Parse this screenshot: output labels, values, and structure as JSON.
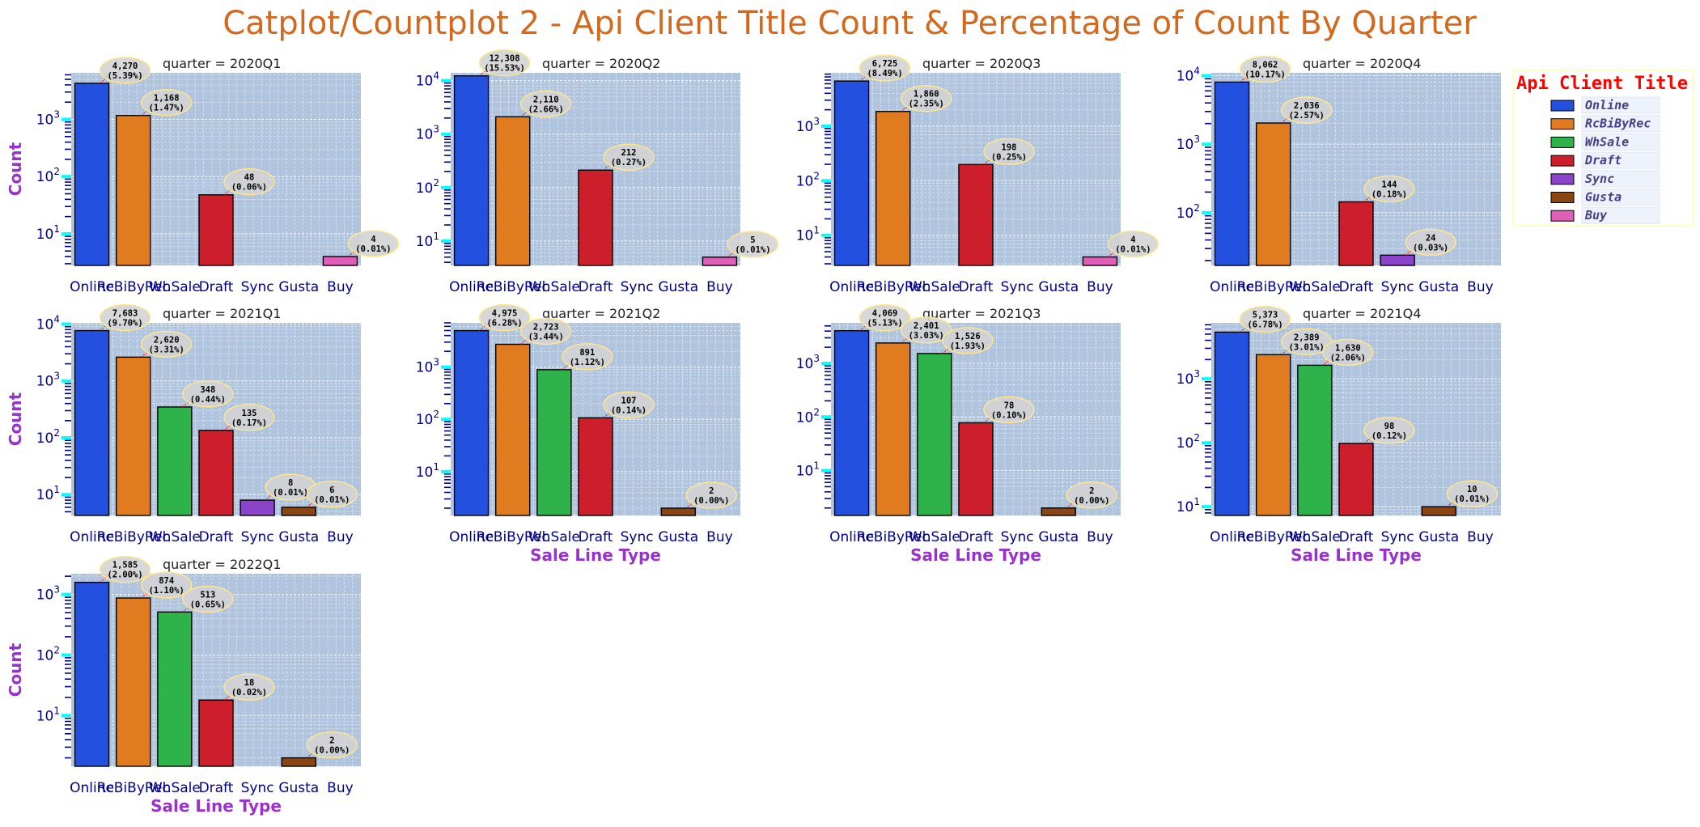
{
  "title": "Catplot/Countplot 2 - Api Client Title Count & Percentage of Count By Quarter",
  "colors": {
    "title": "#d2691e",
    "axis_label": "#9932cc",
    "tick_label": "#00008b",
    "plot_bg": "#b0c4de",
    "grid": "#ffffff",
    "legend_title": "#ff0000",
    "legend_text": "#483d8b",
    "legend_border": "#ffff99",
    "annot_bg": "#d3d3d3",
    "annot_edge": "#ffe88a",
    "annot_arrow": "#ff0000",
    "minor_tick": "#00008b",
    "major_tick": "#00ffff"
  },
  "legend": {
    "title": "Api Client Title",
    "items": [
      {
        "label": "Online",
        "color": "#2450e0"
      },
      {
        "label": "RcBiByRec",
        "color": "#e07b20"
      },
      {
        "label": "WhSale",
        "color": "#2db34a"
      },
      {
        "label": "Draft",
        "color": "#cc1f2b"
      },
      {
        "label": "Sync",
        "color": "#8a43c9"
      },
      {
        "label": "Gusta",
        "color": "#8b4513"
      },
      {
        "label": "Buy",
        "color": "#e05fb8"
      }
    ]
  },
  "chart_data": {
    "type": "bar",
    "y_scale": "log",
    "xlabel": "Sale Line Type",
    "ylabel": "Count",
    "categories": [
      "Online",
      "RcBiByRec",
      "WhSale",
      "Draft",
      "Sync",
      "Gusta",
      "Buy"
    ],
    "legend_position": "right",
    "grid": true,
    "panels": [
      {
        "title": "quarter = 2020Q1",
        "ylim": [
          2.8,
          6500
        ],
        "values": [
          4270,
          1168,
          null,
          48,
          null,
          null,
          4
        ],
        "labels": [
          [
            "4,270",
            "(5.39%)"
          ],
          [
            "1,168",
            "(1.47%)"
          ],
          null,
          [
            "48",
            "(0.06%)"
          ],
          null,
          null,
          [
            "4",
            "(0.01%)"
          ]
        ]
      },
      {
        "title": "quarter = 2020Q2",
        "ylim": [
          3.5,
          14000
        ],
        "values": [
          12308,
          2110,
          null,
          212,
          null,
          null,
          5
        ],
        "labels": [
          [
            "12,308",
            "(15.53%)"
          ],
          [
            "2,110",
            "(2.66%)"
          ],
          null,
          [
            "212",
            "(0.27%)"
          ],
          null,
          null,
          [
            "5",
            "(0.01%)"
          ]
        ]
      },
      {
        "title": "quarter = 2020Q3",
        "ylim": [
          2.8,
          9500
        ],
        "values": [
          6725,
          1860,
          null,
          198,
          null,
          null,
          4
        ],
        "labels": [
          [
            "6,725",
            "(8.49%)"
          ],
          [
            "1,860",
            "(2.35%)"
          ],
          null,
          [
            "198",
            "(0.25%)"
          ],
          null,
          null,
          [
            "4",
            "(0.01%)"
          ]
        ]
      },
      {
        "title": "quarter = 2020Q4",
        "ylim": [
          17,
          11000
        ],
        "values": [
          8062,
          2036,
          null,
          144,
          24,
          null,
          null
        ],
        "labels": [
          [
            "8,062",
            "(10.17%)"
          ],
          [
            "2,036",
            "(2.57%)"
          ],
          null,
          [
            "144",
            "(0.18%)"
          ],
          [
            "24",
            "(0.03%)"
          ],
          null,
          null
        ]
      },
      {
        "title": "quarter = 2021Q1",
        "ylim": [
          4.3,
          10500
        ],
        "values": [
          7683,
          2620,
          348,
          135,
          8,
          6,
          null
        ],
        "labels": [
          [
            "7,683",
            "(9.70%)"
          ],
          [
            "2,620",
            "(3.31%)"
          ],
          [
            "348",
            "(0.44%)"
          ],
          [
            "135",
            "(0.17%)"
          ],
          [
            "8",
            "(0.01%)"
          ],
          [
            "6",
            "(0.01%)"
          ],
          null
        ]
      },
      {
        "title": "quarter = 2021Q2",
        "ylim": [
          1.45,
          7000
        ],
        "values": [
          4975,
          2723,
          891,
          107,
          null,
          2,
          null
        ],
        "labels": [
          [
            "4,975",
            "(6.28%)"
          ],
          [
            "2,723",
            "(3.44%)"
          ],
          [
            "891",
            "(1.12%)"
          ],
          [
            "107",
            "(0.14%)"
          ],
          null,
          [
            "2",
            "(0.00%)"
          ],
          null
        ]
      },
      {
        "title": "quarter = 2021Q3",
        "ylim": [
          1.45,
          5700
        ],
        "values": [
          4069,
          2401,
          1526,
          78,
          null,
          2,
          null
        ],
        "labels": [
          [
            "4,069",
            "(5.13%)"
          ],
          [
            "2,401",
            "(3.03%)"
          ],
          [
            "1,526",
            "(1.93%)"
          ],
          [
            "78",
            "(0.10%)"
          ],
          null,
          [
            "2",
            "(0.00%)"
          ],
          null
        ]
      },
      {
        "title": "quarter = 2021Q4",
        "ylim": [
          7.3,
          7500
        ],
        "values": [
          5373,
          2389,
          1630,
          98,
          null,
          10,
          null
        ],
        "labels": [
          [
            "5,373",
            "(6.78%)"
          ],
          [
            "2,389",
            "(3.01%)"
          ],
          [
            "1,630",
            "(2.06%)"
          ],
          [
            "98",
            "(0.12%)"
          ],
          null,
          [
            "10",
            "(0.01%)"
          ],
          null
        ]
      },
      {
        "title": "quarter = 2022Q1",
        "ylim": [
          1.45,
          2200
        ],
        "values": [
          1585,
          874,
          513,
          18,
          null,
          2,
          null
        ],
        "labels": [
          [
            "1,585",
            "(2.00%)"
          ],
          [
            "874",
            "(1.10%)"
          ],
          [
            "513",
            "(0.65%)"
          ],
          [
            "18",
            "(0.02%)"
          ],
          null,
          [
            "2",
            "(0.00%)"
          ],
          null
        ]
      }
    ]
  }
}
